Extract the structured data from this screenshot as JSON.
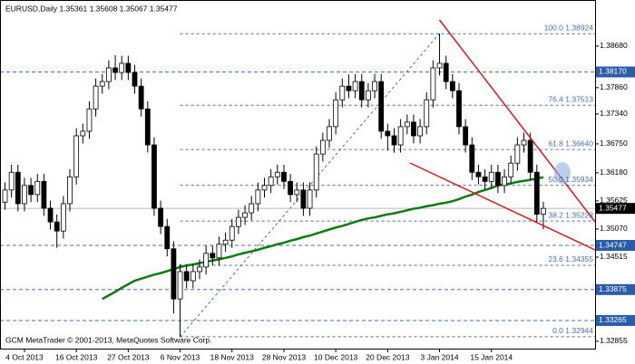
{
  "chart_data": {
    "type": "candlestick",
    "title": "EURUSD,Daily 1.35361 1.35608 1.35067 1.35477",
    "annotation": "GCM MetaTrader © 2001-2013, MetaQuotes Software Corp.",
    "categories": [
      null,
      null,
      null,
      "4 Oct 2013",
      null,
      null,
      null,
      null,
      null,
      null,
      null,
      "16 Oct 2013",
      null,
      null,
      null,
      null,
      null,
      null,
      null,
      "27 Oct 2013",
      null,
      null,
      null,
      null,
      null,
      null,
      null,
      "6 Nov 2013",
      null,
      null,
      null,
      null,
      null,
      null,
      null,
      "18 Nov 2013",
      null,
      null,
      null,
      null,
      null,
      null,
      null,
      "28 Nov 2013",
      null,
      null,
      null,
      null,
      null,
      null,
      null,
      "10 Dec 2013",
      null,
      null,
      null,
      null,
      null,
      null,
      null,
      "20 Dec 2013",
      null,
      null,
      null,
      null,
      null,
      null,
      null,
      "3 Jan 2014",
      null,
      null,
      null,
      null,
      null,
      null,
      null,
      "15 Jan 2014",
      null,
      null,
      null,
      null,
      null,
      null,
      null,
      null
    ],
    "open": [
      1.356,
      1.3584,
      1.3619,
      1.3557,
      1.3593,
      1.3575,
      1.3601,
      1.3548,
      1.3521,
      1.3503,
      1.3557,
      1.361,
      1.3691,
      1.37,
      1.3744,
      1.3789,
      1.3798,
      1.3825,
      1.3816,
      1.3834,
      1.3816,
      1.3789,
      1.3744,
      1.3673,
      1.3548,
      1.3512,
      1.3468,
      1.3369,
      1.3423,
      1.3405,
      1.3423,
      1.3432,
      1.3459,
      1.345,
      1.3477,
      1.3485,
      1.3512,
      1.353,
      1.3539,
      1.3557,
      1.3584,
      1.3593,
      1.361,
      1.3619,
      1.3601,
      1.3575,
      1.3584,
      1.3548,
      1.3584,
      1.3655,
      1.3682,
      1.3709,
      1.3762,
      1.3789,
      1.378,
      1.3798,
      1.3762,
      1.378,
      1.3798,
      1.37,
      1.3691,
      1.3673,
      1.3709,
      1.3718,
      1.3691,
      1.3709,
      1.3762,
      1.3825,
      1.3834,
      1.3798,
      1.378,
      1.3709,
      1.3673,
      1.3619,
      1.361,
      1.3601,
      1.3619,
      1.3593,
      1.361,
      1.3637,
      1.3673,
      1.3682,
      1.3619,
      1.35361
    ],
    "high": [
      1.3599,
      1.3634,
      1.3634,
      1.3608,
      1.3608,
      1.3616,
      1.3616,
      1.3563,
      1.3536,
      1.3572,
      1.3625,
      1.3706,
      1.3715,
      1.3759,
      1.3804,
      1.3813,
      1.384,
      1.385,
      1.3849,
      1.3849,
      1.3831,
      1.3804,
      1.3759,
      1.3688,
      1.3563,
      1.3527,
      1.3483,
      1.3438,
      1.3438,
      1.3438,
      1.3447,
      1.3474,
      1.3474,
      1.3492,
      1.35,
      1.3527,
      1.3545,
      1.3554,
      1.3572,
      1.3599,
      1.3608,
      1.3625,
      1.3634,
      1.3634,
      1.3616,
      1.3599,
      1.3599,
      1.3599,
      1.367,
      1.3697,
      1.3724,
      1.3777,
      1.3804,
      1.3812,
      1.3813,
      1.3813,
      1.3795,
      1.3813,
      1.3813,
      1.3715,
      1.3706,
      1.3724,
      1.3733,
      1.3733,
      1.3724,
      1.3777,
      1.384,
      1.38924,
      1.3849,
      1.3813,
      1.3795,
      1.3724,
      1.3688,
      1.3634,
      1.3625,
      1.3634,
      1.3634,
      1.3625,
      1.3652,
      1.3688,
      1.3697,
      1.3697,
      1.3634,
      1.35608
    ],
    "low": [
      1.3545,
      1.3569,
      1.3542,
      1.3542,
      1.356,
      1.356,
      1.3533,
      1.3506,
      1.347,
      1.3488,
      1.3542,
      1.3595,
      1.3676,
      1.3685,
      1.3729,
      1.3774,
      1.3783,
      1.3801,
      1.3801,
      1.3801,
      1.3774,
      1.3729,
      1.3658,
      1.3533,
      1.3497,
      1.3453,
      1.334,
      1.32944,
      1.339,
      1.339,
      1.3408,
      1.3417,
      1.3435,
      1.3435,
      1.3462,
      1.347,
      1.3497,
      1.3515,
      1.3524,
      1.3542,
      1.3569,
      1.3578,
      1.3595,
      1.3586,
      1.356,
      1.356,
      1.3533,
      1.3533,
      1.3569,
      1.364,
      1.3667,
      1.3694,
      1.3747,
      1.3765,
      1.3765,
      1.3747,
      1.3747,
      1.3765,
      1.3685,
      1.3662,
      1.3658,
      1.3658,
      1.3694,
      1.3676,
      1.3676,
      1.3694,
      1.3747,
      1.381,
      1.3783,
      1.3765,
      1.3694,
      1.3658,
      1.3604,
      1.3595,
      1.3586,
      1.3586,
      1.3578,
      1.3578,
      1.3595,
      1.3622,
      1.3658,
      1.3604,
      1.3521,
      1.35067
    ],
    "close": [
      1.3584,
      1.3619,
      1.3557,
      1.3593,
      1.3575,
      1.3601,
      1.3548,
      1.3521,
      1.3503,
      1.3557,
      1.361,
      1.3691,
      1.37,
      1.3744,
      1.3789,
      1.3798,
      1.3825,
      1.3816,
      1.3834,
      1.3816,
      1.3789,
      1.3744,
      1.3673,
      1.3548,
      1.3512,
      1.3468,
      1.3369,
      1.3423,
      1.3405,
      1.3423,
      1.3432,
      1.3459,
      1.345,
      1.3477,
      1.3485,
      1.3512,
      1.353,
      1.3539,
      1.3557,
      1.3584,
      1.3593,
      1.361,
      1.3619,
      1.3601,
      1.3575,
      1.3584,
      1.3548,
      1.3584,
      1.3655,
      1.3682,
      1.3709,
      1.3762,
      1.3789,
      1.378,
      1.3798,
      1.3762,
      1.378,
      1.3798,
      1.37,
      1.3691,
      1.3673,
      1.3709,
      1.3718,
      1.3691,
      1.3709,
      1.3762,
      1.3825,
      1.3834,
      1.3798,
      1.378,
      1.3709,
      1.3673,
      1.3619,
      1.361,
      1.3601,
      1.3619,
      1.3593,
      1.361,
      1.3637,
      1.3673,
      1.3682,
      1.3619,
      1.35361,
      1.35477
    ],
    "color_up": "#ffffff",
    "color_down": "#000000",
    "moving_average": {
      "color": "#0f7a0f",
      "values": [
        null,
        null,
        null,
        null,
        null,
        null,
        null,
        null,
        null,
        null,
        null,
        null,
        null,
        null,
        null,
        1.3369,
        1.3376,
        1.3383,
        1.3391,
        1.3398,
        1.3405,
        1.3409,
        1.3413,
        1.3417,
        1.342,
        1.3424,
        1.3428,
        1.3432,
        1.3435,
        1.3437,
        1.344,
        1.3442,
        1.3445,
        1.3447,
        1.345,
        1.3453,
        1.3457,
        1.346,
        1.3463,
        1.3466,
        1.347,
        1.3473,
        1.3477,
        1.348,
        1.3484,
        1.3487,
        1.3491,
        1.3494,
        1.3498,
        1.3502,
        1.3506,
        1.351,
        1.3513,
        1.3517,
        1.3521,
        1.3525,
        1.3528,
        1.353,
        1.3533,
        1.3536,
        1.3538,
        1.3541,
        1.3544,
        1.3547,
        1.3549,
        1.3552,
        1.3554,
        1.3557,
        1.3559,
        1.3562,
        1.3566,
        1.3571,
        1.3575,
        1.358,
        1.3584,
        1.3588,
        1.3593,
        1.3595,
        1.3597,
        1.36,
        1.3602,
        1.3604,
        1.3607,
        1.3609
      ]
    },
    "ylim": [
      1.3271,
      1.3959
    ],
    "yticks": [
      {
        "value": 1.3868,
        "label": "1.38680"
      },
      {
        "value": 1.3786,
        "label": "1.37860"
      },
      {
        "value": 1.3734,
        "label": "1.37340"
      },
      {
        "value": 1.3675,
        "label": "1.36750"
      },
      {
        "value": 1.3618,
        "label": "1.36180"
      },
      {
        "value": 1.35625,
        "label": "1.35625"
      },
      {
        "value": 1.3507,
        "label": "1.35070"
      },
      {
        "value": 1.34515,
        "label": "1.34515"
      },
      {
        "value": 1.32855,
        "label": "1.32855"
      }
    ],
    "price_lines": [
      {
        "value": 1.3817,
        "label": "1.38170"
      },
      {
        "value": 1.34747,
        "label": "1.34747"
      },
      {
        "value": 1.33875,
        "label": "1.33875"
      },
      {
        "value": 1.33265,
        "label": "1.33265"
      }
    ],
    "current_price": {
      "value": 1.35477,
      "label": "1.35477"
    },
    "fib_levels": [
      {
        "value": 1.38924,
        "label": "100.0 1.38924"
      },
      {
        "value": 1.37513,
        "label": "76.4 1.37513"
      },
      {
        "value": 1.3664,
        "label": "61.8 1.36640"
      },
      {
        "value": 1.35934,
        "label": "50.0 1.35934"
      },
      {
        "value": 1.35228,
        "label": "38.2 1.35228"
      },
      {
        "value": 1.34355,
        "label": "23.6 1.34355"
      },
      {
        "value": 1.32944,
        "label": "0.0 1.32944"
      }
    ]
  }
}
